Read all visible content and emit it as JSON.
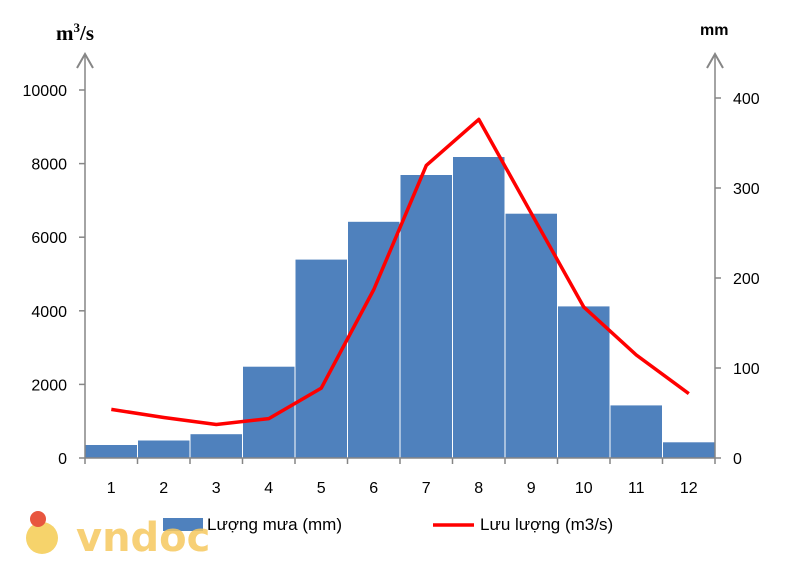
{
  "chart_data": {
    "type": "bar",
    "categories": [
      "1",
      "2",
      "3",
      "4",
      "5",
      "6",
      "7",
      "8",
      "9",
      "10",
      "11",
      "12"
    ],
    "series": [
      {
        "name": "Lượng mưa (mm)",
        "type": "bar",
        "axis": "right",
        "values": [
          15,
          20,
          27,
          102,
          221,
          263,
          315,
          335,
          272,
          169,
          59,
          18
        ]
      },
      {
        "name": "Lưu lượng (m3/s)",
        "type": "line",
        "axis": "left",
        "values": [
          1320,
          1100,
          910,
          1070,
          1900,
          4580,
          7950,
          9200,
          6650,
          4100,
          2800,
          1750
        ]
      }
    ],
    "y_left": {
      "unit": "m3/s",
      "unit_base": "m",
      "unit_sup": "3",
      "unit_tail": "/s",
      "ylim": [
        0,
        10000
      ],
      "ticks": [
        "0",
        "2000",
        "4000",
        "6000",
        "8000",
        "10000"
      ]
    },
    "y_right": {
      "unit": "mm",
      "ylim": [
        0,
        400
      ],
      "ticks": [
        "0",
        "100",
        "200",
        "300",
        "400"
      ]
    },
    "legend_position": "bottom",
    "colors": {
      "bar": "#4f81bd",
      "line": "#ff0000",
      "axis": "#868686"
    }
  },
  "watermark": "vndoc"
}
